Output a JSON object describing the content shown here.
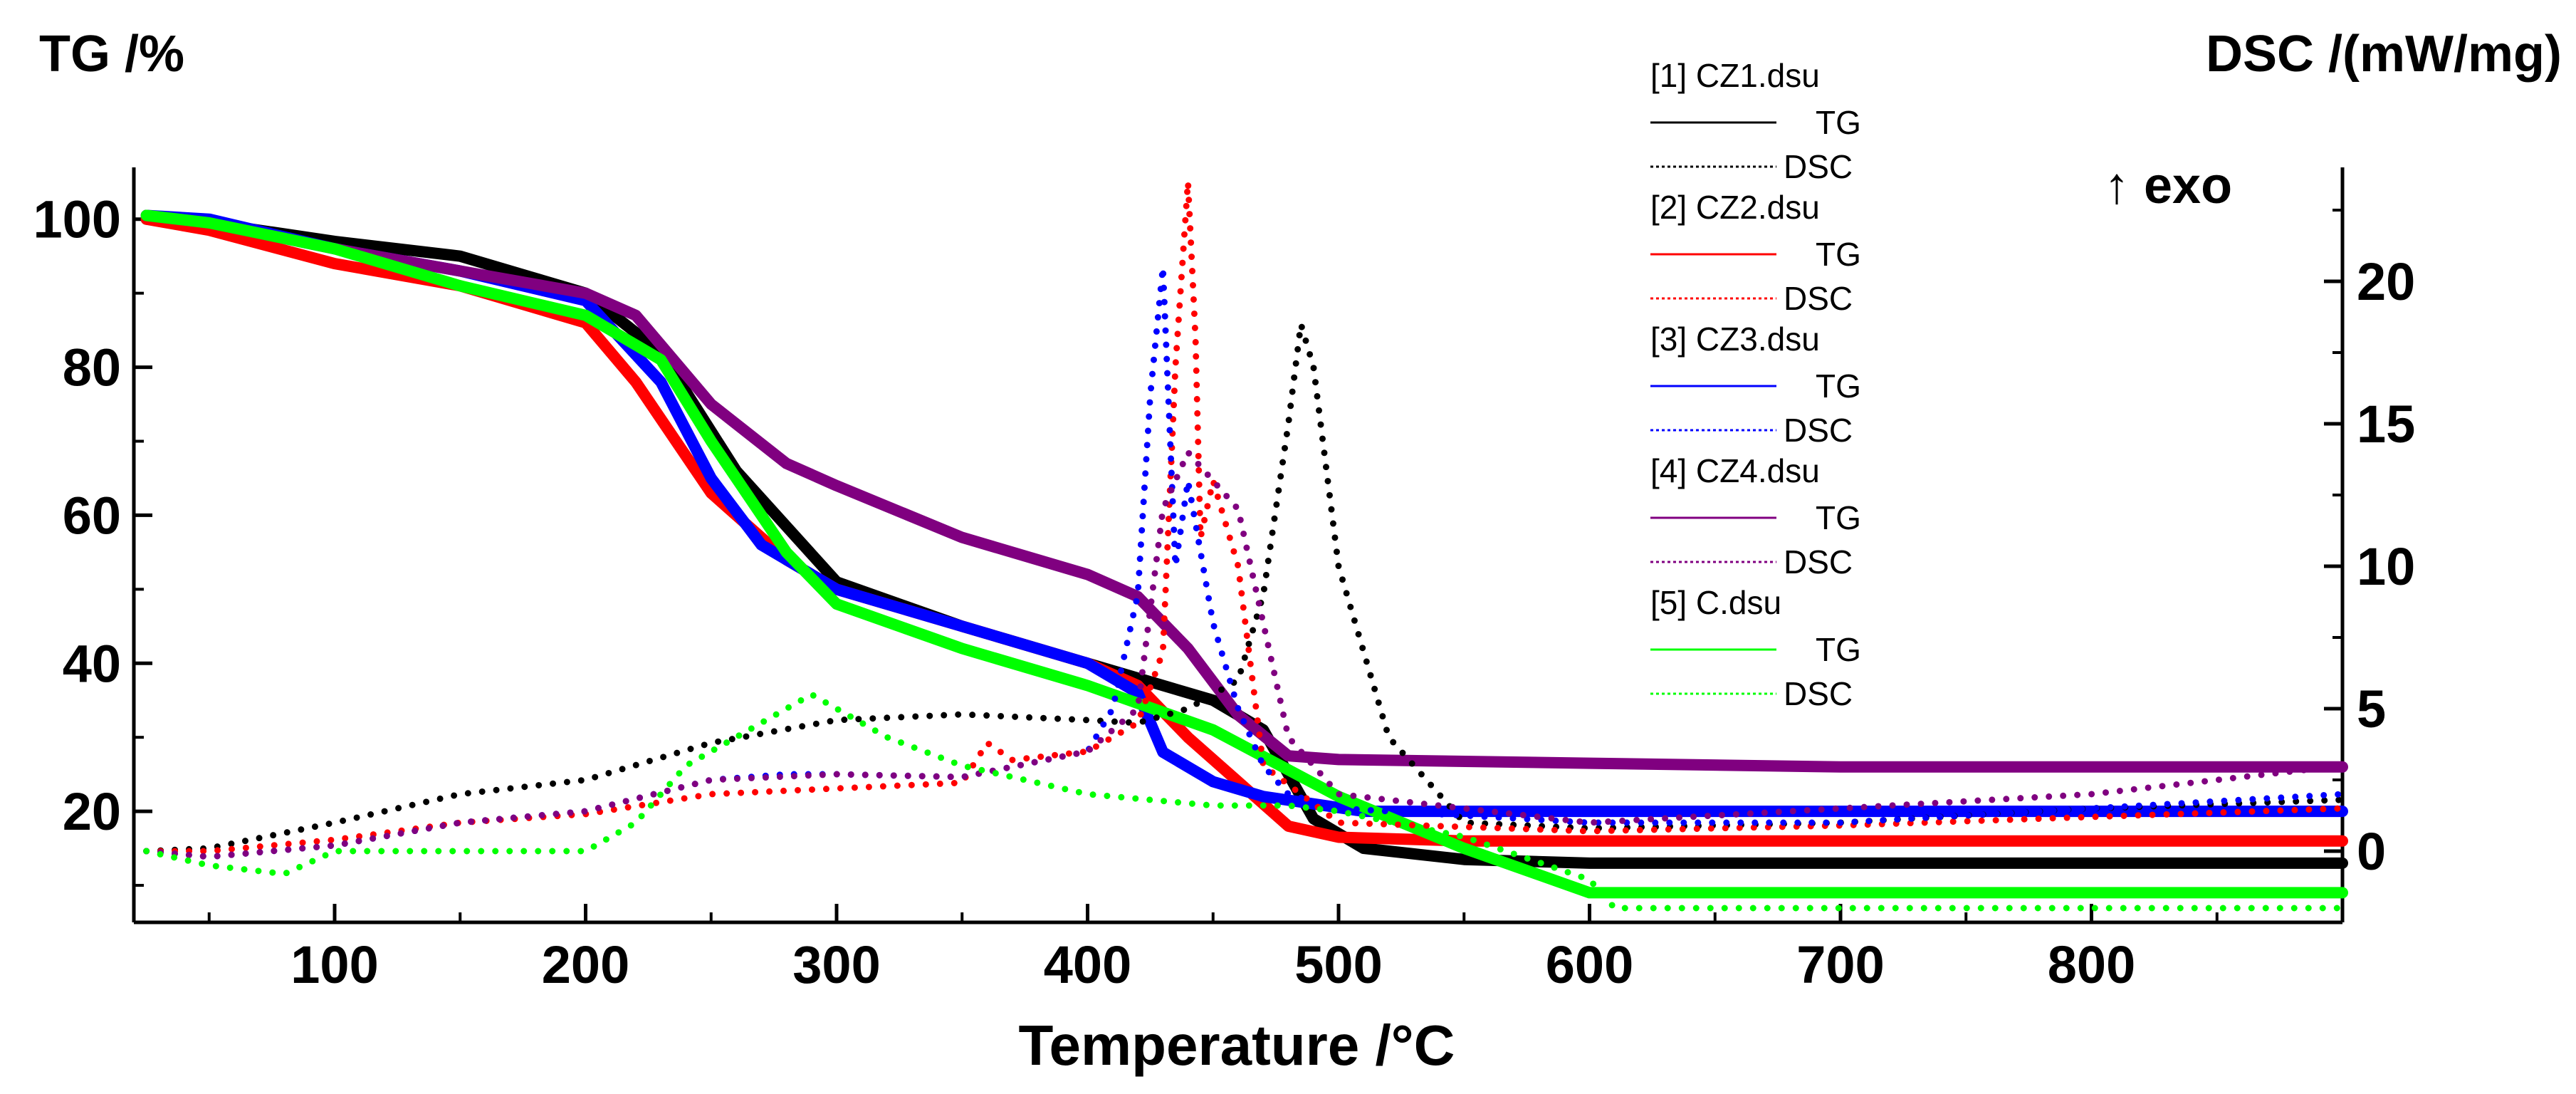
{
  "chart_data": {
    "type": "line",
    "xlabel": "Temperature /°C",
    "ylabel_left": "TG /%",
    "ylabel_right": "DSC /(mW/mg)",
    "exo_label": "↑ exo",
    "xlim": [
      20,
      900
    ],
    "ylim_left": [
      5,
      107
    ],
    "ylim_right": [
      -2.5,
      24
    ],
    "x_ticks": [
      100,
      200,
      300,
      400,
      500,
      600,
      700,
      800
    ],
    "y_left_ticks": [
      20,
      40,
      60,
      80,
      100
    ],
    "y_right_ticks": [
      0,
      5,
      10,
      15,
      20
    ],
    "grid": false,
    "legend_position": "top-right",
    "legend": [
      {
        "file": "[1] CZ1.dsu",
        "tg": "TG",
        "dsc": "DSC",
        "color": "#000000"
      },
      {
        "file": "[2] CZ2.dsu",
        "tg": "TG",
        "dsc": "DSC",
        "color": "#ff0000"
      },
      {
        "file": "[3] CZ3.dsu",
        "tg": "TG",
        "dsc": "DSC",
        "color": "#0000ff"
      },
      {
        "file": "[4] CZ4.dsu",
        "tg": "TG",
        "dsc": "DSC",
        "color": "#800080"
      },
      {
        "file": "[5] C.dsu",
        "tg": "TG",
        "dsc": "DSC",
        "color": "#00ff00"
      }
    ],
    "series": [
      {
        "name": "CZ1",
        "kind": "TG",
        "color": "#000000",
        "x": [
          25,
          50,
          100,
          150,
          200,
          230,
          260,
          300,
          350,
          400,
          450,
          470,
          490,
          510,
          550,
          600,
          700,
          800,
          900
        ],
        "y": [
          100,
          99.5,
          97,
          95,
          90,
          82,
          66,
          51,
          45,
          40,
          35,
          31,
          19,
          15,
          13.5,
          13,
          13,
          13,
          13
        ]
      },
      {
        "name": "CZ2",
        "kind": "TG",
        "color": "#ff0000",
        "x": [
          25,
          50,
          100,
          150,
          200,
          220,
          250,
          280,
          300,
          350,
          400,
          420,
          440,
          460,
          480,
          500,
          550,
          600,
          700,
          800,
          900
        ],
        "y": [
          100,
          98.5,
          94,
          91,
          86,
          78,
          63,
          54,
          50,
          45,
          40,
          37,
          30,
          24,
          18,
          16.5,
          16,
          16,
          16,
          16,
          16
        ]
      },
      {
        "name": "CZ3",
        "kind": "TG",
        "color": "#0000ff",
        "x": [
          25,
          50,
          100,
          150,
          200,
          230,
          250,
          270,
          300,
          350,
          400,
          420,
          430,
          450,
          470,
          490,
          510,
          600,
          700,
          800,
          900
        ],
        "y": [
          100.5,
          100,
          96,
          93,
          89,
          78,
          65,
          56,
          50,
          45,
          40,
          36,
          28,
          24,
          22,
          21,
          20,
          20,
          20,
          20,
          20
        ]
      },
      {
        "name": "CZ4",
        "kind": "TG",
        "color": "#800080",
        "x": [
          25,
          50,
          100,
          150,
          200,
          220,
          250,
          280,
          300,
          350,
          400,
          420,
          440,
          460,
          480,
          500,
          600,
          700,
          800,
          900
        ],
        "y": [
          100.5,
          99.5,
          96,
          93,
          90,
          87,
          75,
          67,
          64,
          57,
          52,
          49,
          42,
          33,
          27.5,
          27,
          26.5,
          26,
          26,
          26
        ]
      },
      {
        "name": "C",
        "kind": "TG",
        "color": "#00ff00",
        "x": [
          25,
          50,
          100,
          150,
          200,
          230,
          250,
          280,
          300,
          350,
          400,
          450,
          500,
          550,
          600,
          650,
          700,
          800,
          900
        ],
        "y": [
          100.5,
          99.5,
          96,
          91,
          87,
          81,
          70,
          55,
          48,
          42,
          37,
          31,
          22,
          15,
          9,
          9,
          9,
          9,
          9
        ]
      },
      {
        "name": "CZ1",
        "kind": "DSC",
        "color": "#000000",
        "x": [
          25,
          50,
          100,
          150,
          200,
          250,
          300,
          350,
          400,
          420,
          440,
          460,
          470,
          480,
          485,
          490,
          500,
          520,
          550,
          600,
          700,
          800,
          900
        ],
        "y": [
          0,
          0.1,
          1,
          2,
          2.5,
          3.8,
          4.6,
          4.8,
          4.6,
          4.5,
          5,
          6,
          9,
          15,
          18.5,
          17,
          10,
          4,
          1,
          0.8,
          1,
          1.5,
          1.8
        ]
      },
      {
        "name": "CZ2",
        "kind": "DSC",
        "color": "#ff0000",
        "x": [
          25,
          50,
          100,
          150,
          200,
          250,
          300,
          350,
          360,
          370,
          400,
          420,
          430,
          435,
          440,
          443,
          445,
          450,
          460,
          470,
          500,
          600,
          700,
          800,
          900
        ],
        "y": [
          0,
          0,
          0.4,
          1,
          1.3,
          2,
          2.2,
          2.4,
          3.8,
          3.2,
          3.5,
          4.5,
          7,
          17,
          23.5,
          18,
          11,
          13,
          10,
          3,
          1,
          0.7,
          0.9,
          1.2,
          1.5
        ]
      },
      {
        "name": "CZ3",
        "kind": "DSC",
        "color": "#0000ff",
        "x": [
          25,
          50,
          100,
          150,
          200,
          250,
          280,
          300,
          350,
          400,
          410,
          420,
          425,
          430,
          435,
          440,
          450,
          460,
          470,
          480,
          500,
          600,
          700,
          800,
          900
        ],
        "y": [
          0,
          -0.2,
          0.2,
          1,
          1.4,
          2.5,
          2.7,
          2.7,
          2.6,
          3.5,
          5,
          9,
          16,
          20.5,
          10,
          13,
          8,
          5,
          3,
          2,
          1.5,
          1,
          1,
          1.5,
          2
        ]
      },
      {
        "name": "CZ4",
        "kind": "DSC",
        "color": "#800080",
        "x": [
          25,
          50,
          100,
          150,
          200,
          250,
          300,
          350,
          400,
          420,
          430,
          440,
          450,
          460,
          470,
          480,
          500,
          600,
          700,
          800,
          900
        ],
        "y": [
          0,
          -0.2,
          0.2,
          1,
          1.4,
          2.5,
          2.7,
          2.6,
          3.5,
          5,
          12,
          14,
          13,
          12,
          8,
          4,
          2,
          1,
          1.5,
          2,
          3
        ]
      },
      {
        "name": "C",
        "kind": "DSC",
        "color": "#00ff00",
        "x": [
          25,
          50,
          80,
          100,
          150,
          200,
          220,
          240,
          260,
          280,
          290,
          300,
          320,
          350,
          400,
          450,
          480,
          500,
          550,
          600,
          610,
          700,
          800,
          900
        ],
        "y": [
          0,
          -0.5,
          -0.8,
          0,
          0,
          0,
          1,
          3,
          4,
          5,
          5.5,
          5,
          4,
          3,
          2,
          1.6,
          1.6,
          1.4,
          0.5,
          -1,
          -2,
          -2,
          -2,
          -2
        ]
      }
    ]
  }
}
